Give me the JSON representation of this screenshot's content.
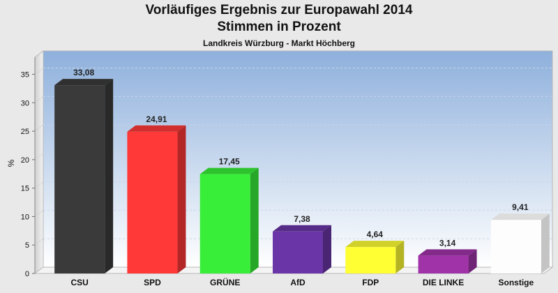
{
  "chart_data": {
    "type": "bar",
    "title": "Vorläufiges Ergebnis zur Europawahl 2014",
    "subtitle": "Stimmen in Prozent",
    "caption": "Landkreis Würzburg - Markt Höchberg",
    "ylabel": "%",
    "xlabel": "",
    "ylim": [
      0,
      38
    ],
    "yticks": [
      0,
      5,
      10,
      15,
      20,
      25,
      30,
      35
    ],
    "grid": true,
    "categories": [
      "CSU",
      "SPD",
      "GRÜNE",
      "AfD",
      "FDP",
      "DIE LINKE",
      "Sonstige"
    ],
    "values": [
      33.08,
      24.91,
      17.45,
      7.38,
      4.64,
      3.14,
      9.41
    ],
    "value_labels": [
      "33,08",
      "24,91",
      "17,45",
      "7,38",
      "4,64",
      "3,14",
      "9,41"
    ],
    "colors": [
      "#3a3a3a",
      "#ff3838",
      "#38ee38",
      "#6a35a6",
      "#ffff33",
      "#a033a8",
      "#ffffff"
    ]
  }
}
